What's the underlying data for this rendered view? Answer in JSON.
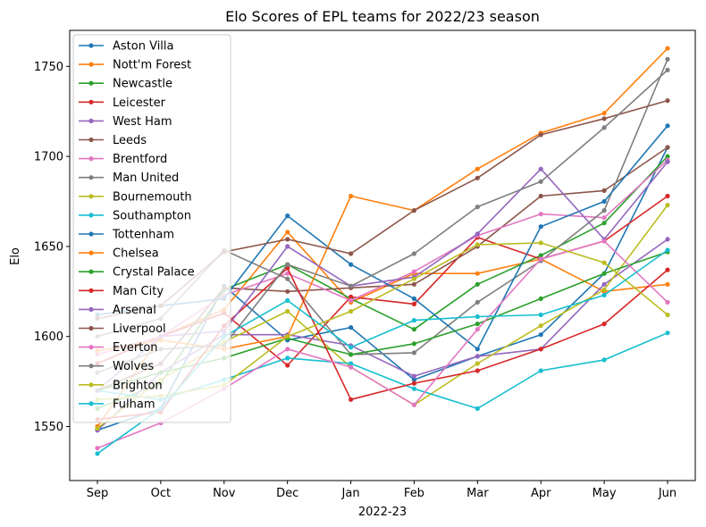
{
  "chart_data": {
    "type": "line",
    "title": "Elo Scores of EPL teams for 2022/23 season",
    "xlabel": "2022-23",
    "ylabel": "Elo",
    "categories": [
      "Sep",
      "Oct",
      "Nov",
      "Dec",
      "Jan",
      "Feb",
      "Mar",
      "Apr",
      "May",
      "Jun"
    ],
    "ylim": [
      1520,
      1770
    ],
    "yticks": [
      1550,
      1600,
      1650,
      1700,
      1750
    ],
    "grid": false,
    "legend_position": "upper-left",
    "series": [
      {
        "name": "Aston Villa",
        "color": "#1f77b4",
        "values": [
          1548,
          1560,
          1628,
          1598,
          1605,
          1576,
          1589,
          1601,
          1635,
          1705
        ]
      },
      {
        "name": "Nott'm Forest",
        "color": "#ff7f0e",
        "values": [
          1550,
          1600,
          1615,
          1658,
          1619,
          1635,
          1635,
          1643,
          1625,
          1629
        ]
      },
      {
        "name": "Newcastle",
        "color": "#2ca02c",
        "values": [
          1560,
          1574,
          1626,
          1640,
          1621,
          1604,
          1629,
          1645,
          1663,
          1700
        ]
      },
      {
        "name": "Leicester",
        "color": "#d62728",
        "values": [
          1585,
          1600,
          1613,
          1584,
          1622,
          1618,
          1655,
          1643,
          1653,
          1678
        ]
      },
      {
        "name": "West Ham",
        "color": "#9467bd",
        "values": [
          1548,
          1580,
          1601,
          1601,
          1595,
          1578,
          1589,
          1593,
          1629,
          1654
        ]
      },
      {
        "name": "Leeds",
        "color": "#8c564b",
        "values": [
          1570,
          1585,
          1627,
          1625,
          1627,
          1629,
          1650,
          1678,
          1681,
          1705
        ]
      },
      {
        "name": "Brentford",
        "color": "#e377c2",
        "values": [
          1590,
          1600,
          1623,
          1635,
          1620,
          1636,
          1656,
          1668,
          1666,
          1698
        ]
      },
      {
        "name": "Man United",
        "color": "#7f7f7f",
        "values": [
          1600,
          1610,
          1648,
          1632,
          1590,
          1591,
          1619,
          1642,
          1670,
          1754
        ]
      },
      {
        "name": "Bournemouth",
        "color": "#bcbd22",
        "values": [
          1549,
          1576,
          1597,
          1614,
          1583,
          1562,
          1585,
          1606,
          1626,
          1673
        ]
      },
      {
        "name": "Southampton",
        "color": "#17becf",
        "values": [
          1570,
          1565,
          1576,
          1588,
          1585,
          1571,
          1560,
          1581,
          1587,
          1602
        ]
      },
      {
        "name": "Tottenham",
        "color": "#1f77b4",
        "values": [
          1612,
          1617,
          1621,
          1667,
          1640,
          1621,
          1593,
          1661,
          1675,
          1717
        ]
      },
      {
        "name": "Chelsea",
        "color": "#ff7f0e",
        "values": [
          1592,
          1598,
          1593,
          1600,
          1678,
          1670,
          1693,
          1713,
          1724,
          1760
        ]
      },
      {
        "name": "Crystal Palace",
        "color": "#2ca02c",
        "values": [
          1570,
          1580,
          1588,
          1599,
          1590,
          1596,
          1607,
          1621,
          1635,
          1647
        ]
      },
      {
        "name": "Man City",
        "color": "#d62728",
        "values": [
          1554,
          1558,
          1606,
          1638,
          1565,
          1574,
          1581,
          1593,
          1607,
          1637
        ]
      },
      {
        "name": "Arsenal",
        "color": "#9467bd",
        "values": [
          1570,
          1600,
          1603,
          1650,
          1628,
          1633,
          1657,
          1693,
          1654,
          1697
        ]
      },
      {
        "name": "Liverpool",
        "color": "#8c564b",
        "values": [
          1610,
          1617,
          1647,
          1654,
          1646,
          1670,
          1688,
          1712,
          1721,
          1731
        ]
      },
      {
        "name": "Everton",
        "color": "#e377c2",
        "values": [
          1538,
          1552,
          1571,
          1593,
          1583,
          1562,
          1604,
          1643,
          1653,
          1619
        ]
      },
      {
        "name": "Wolves",
        "color": "#7f7f7f",
        "values": [
          1580,
          1593,
          1595,
          1640,
          1628,
          1646,
          1672,
          1686,
          1716,
          1748
        ]
      },
      {
        "name": "Brighton",
        "color": "#bcbd22",
        "values": [
          1565,
          1567,
          1573,
          1600,
          1614,
          1632,
          1651,
          1652,
          1641,
          1612
        ]
      },
      {
        "name": "Fulham",
        "color": "#17becf",
        "values": [
          1535,
          1560,
          1600,
          1620,
          1594,
          1609,
          1611,
          1612,
          1623,
          1648
        ]
      }
    ]
  }
}
